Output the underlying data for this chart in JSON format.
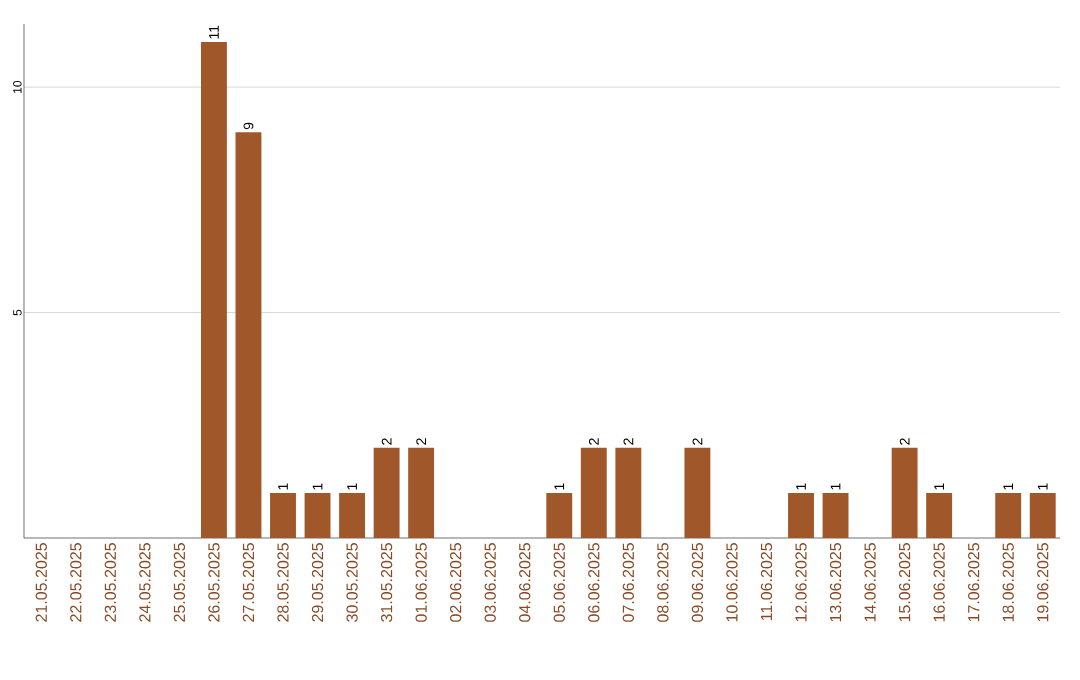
{
  "chart_data": {
    "type": "bar",
    "categories": [
      "21.05.2025",
      "22.05.2025",
      "23.05.2025",
      "24.05.2025",
      "25.05.2025",
      "26.05.2025",
      "27.05.2025",
      "28.05.2025",
      "29.05.2025",
      "30.05.2025",
      "31.05.2025",
      "01.06.2025",
      "02.06.2025",
      "03.06.2025",
      "04.06.2025",
      "05.06.2025",
      "06.06.2025",
      "07.06.2025",
      "08.06.2025",
      "09.06.2025",
      "10.06.2025",
      "11.06.2025",
      "12.06.2025",
      "13.06.2025",
      "14.06.2025",
      "15.06.2025",
      "16.06.2025",
      "17.06.2025",
      "18.06.2025",
      "19.06.2025"
    ],
    "values": [
      0,
      0,
      0,
      0,
      0,
      11,
      9,
      1,
      1,
      1,
      2,
      2,
      0,
      0,
      0,
      1,
      2,
      2,
      0,
      2,
      0,
      0,
      1,
      1,
      0,
      2,
      1,
      0,
      1,
      1
    ],
    "value_labels": [
      null,
      null,
      null,
      null,
      null,
      "11",
      "9",
      "1",
      "1",
      "1",
      "2",
      "2",
      null,
      null,
      null,
      "1",
      "2",
      "2",
      null,
      "2",
      null,
      null,
      "1",
      "1",
      null,
      "2",
      "1",
      null,
      "1",
      "1"
    ],
    "color": "#a0572a",
    "ylim": [
      0,
      11.4
    ],
    "yticks": [
      5,
      10
    ],
    "grid": "y"
  }
}
